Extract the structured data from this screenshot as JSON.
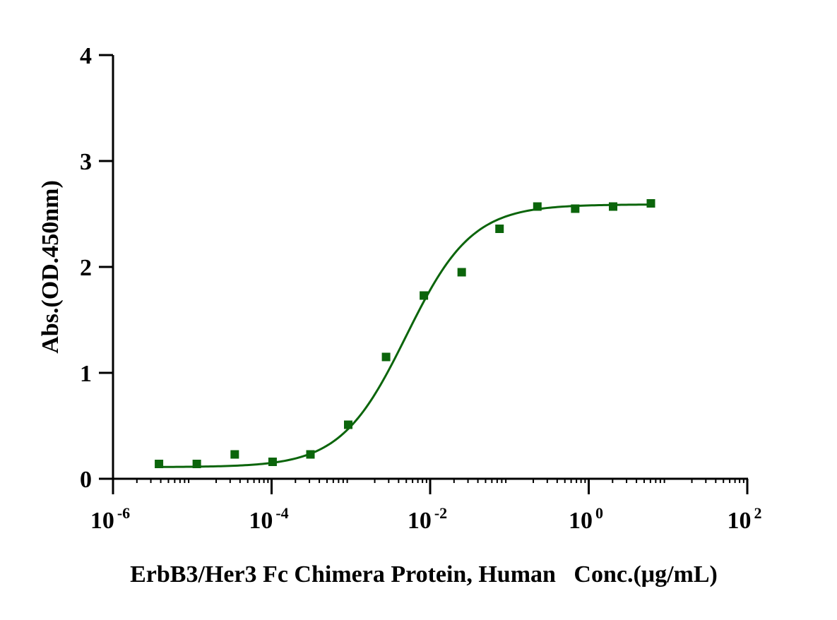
{
  "chart_data": {
    "type": "scatter",
    "xlabel": "ErbB3/Her3 Fc Chimera Protein, Human   Conc.(μg/mL)",
    "ylabel": "Abs.(OD.450nm)",
    "x_scale": "log",
    "xlim": [
      1e-06,
      100
    ],
    "ylim": [
      0,
      4
    ],
    "x_ticks": [
      {
        "value": 1e-06,
        "base": "10",
        "exp": "-6"
      },
      {
        "value": 0.0001,
        "base": "10",
        "exp": "-4"
      },
      {
        "value": 0.01,
        "base": "10",
        "exp": "-2"
      },
      {
        "value": 1,
        "base": "10",
        "exp": "0"
      },
      {
        "value": 100,
        "base": "10",
        "exp": "2"
      }
    ],
    "y_ticks": [
      {
        "value": 0,
        "label": "0"
      },
      {
        "value": 1,
        "label": "1"
      },
      {
        "value": 2,
        "label": "2"
      },
      {
        "value": 3,
        "label": "3"
      },
      {
        "value": 4,
        "label": "4"
      }
    ],
    "grid": false,
    "series": [
      {
        "color": "#0b650b",
        "marker": "square",
        "points": [
          {
            "x": 3.8e-06,
            "y": 0.14
          },
          {
            "x": 1.14e-05,
            "y": 0.14
          },
          {
            "x": 3.43e-05,
            "y": 0.23
          },
          {
            "x": 0.000103,
            "y": 0.16
          },
          {
            "x": 0.000309,
            "y": 0.23
          },
          {
            "x": 0.000926,
            "y": 0.51
          },
          {
            "x": 0.00278,
            "y": 1.15
          },
          {
            "x": 0.00833,
            "y": 1.73
          },
          {
            "x": 0.025,
            "y": 1.95
          },
          {
            "x": 0.075,
            "y": 2.36
          },
          {
            "x": 0.225,
            "y": 2.57
          },
          {
            "x": 0.675,
            "y": 2.55
          },
          {
            "x": 2.03,
            "y": 2.57
          },
          {
            "x": 6.08,
            "y": 2.6
          }
        ],
        "fit": {
          "bottom": 0.11,
          "top": 2.59,
          "ec50": 0.005,
          "hill": 1.05
        }
      }
    ]
  }
}
